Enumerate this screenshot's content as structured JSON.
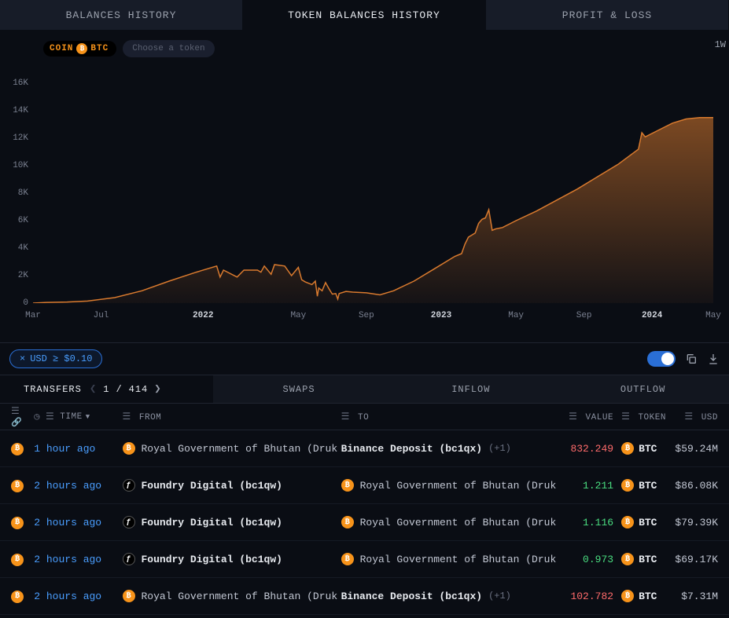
{
  "tabs": {
    "balances": "BALANCES HISTORY",
    "token_balances": "TOKEN BALANCES HISTORY",
    "pnl": "PROFIT & LOSS",
    "active_index": 1
  },
  "coin_chip": {
    "label": "COIN",
    "symbol": "BTC"
  },
  "choose_token_placeholder": "Choose a token",
  "timeframe": "1W",
  "chart": {
    "type": "area",
    "ylim": [
      0,
      16000
    ],
    "y_ticks": [
      {
        "v": 0,
        "label": "0"
      },
      {
        "v": 2000,
        "label": "2K"
      },
      {
        "v": 4000,
        "label": "4K"
      },
      {
        "v": 6000,
        "label": "6K"
      },
      {
        "v": 8000,
        "label": "8K"
      },
      {
        "v": 10000,
        "label": "10K"
      },
      {
        "v": 12000,
        "label": "12K"
      },
      {
        "v": 14000,
        "label": "14K"
      },
      {
        "v": 16000,
        "label": "16K"
      }
    ],
    "x_ticks": [
      {
        "x": 0.0,
        "label": "Mar",
        "bold": false
      },
      {
        "x": 0.1,
        "label": "Jul",
        "bold": false
      },
      {
        "x": 0.25,
        "label": "2022",
        "bold": true
      },
      {
        "x": 0.39,
        "label": "May",
        "bold": false
      },
      {
        "x": 0.49,
        "label": "Sep",
        "bold": false
      },
      {
        "x": 0.6,
        "label": "2023",
        "bold": true
      },
      {
        "x": 0.71,
        "label": "May",
        "bold": false
      },
      {
        "x": 0.81,
        "label": "Sep",
        "bold": false
      },
      {
        "x": 0.91,
        "label": "2024",
        "bold": true
      },
      {
        "x": 1.0,
        "label": "May",
        "bold": false
      }
    ],
    "series": [
      [
        0.0,
        0
      ],
      [
        0.02,
        50
      ],
      [
        0.05,
        80
      ],
      [
        0.08,
        150
      ],
      [
        0.12,
        400
      ],
      [
        0.16,
        900
      ],
      [
        0.2,
        1600
      ],
      [
        0.24,
        2250
      ],
      [
        0.27,
        2700
      ],
      [
        0.275,
        1900
      ],
      [
        0.28,
        2400
      ],
      [
        0.3,
        1900
      ],
      [
        0.31,
        2400
      ],
      [
        0.33,
        2400
      ],
      [
        0.335,
        2250
      ],
      [
        0.34,
        2700
      ],
      [
        0.35,
        2100
      ],
      [
        0.355,
        2800
      ],
      [
        0.37,
        2700
      ],
      [
        0.38,
        2000
      ],
      [
        0.39,
        2600
      ],
      [
        0.395,
        1700
      ],
      [
        0.4,
        1550
      ],
      [
        0.41,
        1350
      ],
      [
        0.415,
        1600
      ],
      [
        0.418,
        500
      ],
      [
        0.42,
        1100
      ],
      [
        0.425,
        900
      ],
      [
        0.43,
        1500
      ],
      [
        0.435,
        1050
      ],
      [
        0.44,
        650
      ],
      [
        0.445,
        700
      ],
      [
        0.448,
        300
      ],
      [
        0.45,
        700
      ],
      [
        0.46,
        850
      ],
      [
        0.47,
        800
      ],
      [
        0.49,
        750
      ],
      [
        0.51,
        600
      ],
      [
        0.53,
        900
      ],
      [
        0.56,
        1600
      ],
      [
        0.59,
        2500
      ],
      [
        0.62,
        3400
      ],
      [
        0.63,
        3600
      ],
      [
        0.635,
        4300
      ],
      [
        0.64,
        4800
      ],
      [
        0.65,
        5100
      ],
      [
        0.655,
        5800
      ],
      [
        0.66,
        6100
      ],
      [
        0.665,
        6200
      ],
      [
        0.67,
        6800
      ],
      [
        0.675,
        5300
      ],
      [
        0.68,
        5400
      ],
      [
        0.69,
        5500
      ],
      [
        0.71,
        6000
      ],
      [
        0.74,
        6700
      ],
      [
        0.77,
        7500
      ],
      [
        0.8,
        8300
      ],
      [
        0.83,
        9200
      ],
      [
        0.86,
        10100
      ],
      [
        0.89,
        11200
      ],
      [
        0.895,
        12400
      ],
      [
        0.9,
        12100
      ],
      [
        0.92,
        12600
      ],
      [
        0.94,
        13100
      ],
      [
        0.96,
        13400
      ],
      [
        0.98,
        13500
      ],
      [
        1.0,
        13500
      ]
    ],
    "stroke_color": "#d97a2e",
    "fill_top_color": "rgba(217,122,46,0.55)",
    "fill_bottom_color": "rgba(217,122,46,0.05)",
    "background": "#0a0d14"
  },
  "usd_filter": {
    "close": "×",
    "text": "USD ≥ $0.10"
  },
  "sub_tabs": {
    "transfers": "TRANSFERS",
    "swaps": "SWAPS",
    "inflow": "INFLOW",
    "outflow": "OUTFLOW",
    "page_current": "1",
    "page_sep": "/",
    "page_total": "414"
  },
  "table": {
    "headers": {
      "time": "TIME",
      "from": "FROM",
      "to": "TO",
      "value": "VALUE",
      "token": "TOKEN",
      "usd": "USD"
    },
    "rows": [
      {
        "time": "1 hour ago",
        "from_icon": "btc",
        "from": "Royal Government of Bhutan (Druk",
        "from_bold": false,
        "to_icon": "",
        "to": "Binance Deposit (bc1qx)",
        "to_bold": true,
        "plus": "(+1)",
        "value": "832.249",
        "value_class": "value-red",
        "token": "BTC",
        "usd": "$59.24M"
      },
      {
        "time": "2 hours ago",
        "from_icon": "dark",
        "from": "Foundry Digital (bc1qw)",
        "from_bold": true,
        "to_icon": "btc",
        "to": "Royal Government of Bhutan (Druk",
        "to_bold": false,
        "plus": "",
        "value": "1.211",
        "value_class": "value-green",
        "token": "BTC",
        "usd": "$86.08K"
      },
      {
        "time": "2 hours ago",
        "from_icon": "dark",
        "from": "Foundry Digital (bc1qw)",
        "from_bold": true,
        "to_icon": "btc",
        "to": "Royal Government of Bhutan (Druk",
        "to_bold": false,
        "plus": "",
        "value": "1.116",
        "value_class": "value-green",
        "token": "BTC",
        "usd": "$79.39K"
      },
      {
        "time": "2 hours ago",
        "from_icon": "dark",
        "from": "Foundry Digital (bc1qw)",
        "from_bold": true,
        "to_icon": "btc",
        "to": "Royal Government of Bhutan (Druk",
        "to_bold": false,
        "plus": "",
        "value": "0.973",
        "value_class": "value-green",
        "token": "BTC",
        "usd": "$69.17K"
      },
      {
        "time": "2 hours ago",
        "from_icon": "btc",
        "from": "Royal Government of Bhutan (Druk",
        "from_bold": false,
        "to_icon": "",
        "to": "Binance Deposit (bc1qx)",
        "to_bold": true,
        "plus": "(+1)",
        "value": "102.782",
        "value_class": "value-red",
        "token": "BTC",
        "usd": "$7.31M"
      }
    ]
  }
}
